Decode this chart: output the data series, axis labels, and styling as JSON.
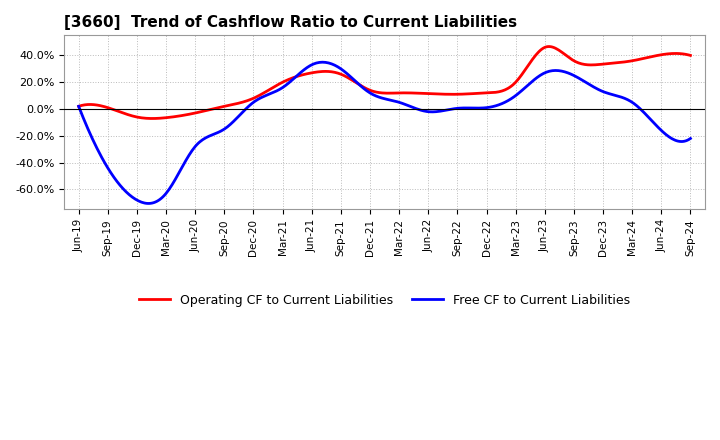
{
  "title": "[3660]  Trend of Cashflow Ratio to Current Liabilities",
  "labels": [
    "Jun-19",
    "Sep-19",
    "Dec-19",
    "Mar-20",
    "Jun-20",
    "Sep-20",
    "Dec-20",
    "Mar-21",
    "Jun-21",
    "Sep-21",
    "Dec-21",
    "Mar-22",
    "Jun-22",
    "Sep-22",
    "Dec-22",
    "Mar-23",
    "Jun-23",
    "Sep-23",
    "Dec-23",
    "Mar-24",
    "Jun-24",
    "Sep-24"
  ],
  "operating_cf": [
    2.0,
    1.0,
    -6.0,
    -6.5,
    -3.0,
    2.0,
    8.0,
    20.0,
    27.0,
    26.0,
    14.0,
    12.0,
    11.5,
    11.0,
    12.0,
    20.0,
    46.0,
    36.0,
    33.5,
    36.0,
    40.5,
    40.0
  ],
  "free_cf": [
    2.0,
    -44.0,
    -68.0,
    -63.0,
    -28.0,
    -15.0,
    5.0,
    16.0,
    33.0,
    30.0,
    12.0,
    5.0,
    -2.0,
    0.5,
    1.0,
    10.0,
    27.0,
    25.0,
    13.0,
    5.0,
    -16.0,
    -22.0
  ],
  "operating_color": "#ff0000",
  "free_color": "#0000ff",
  "background_color": "#ffffff",
  "grid_color": "#bbbbbb",
  "ylim": [
    -75,
    55
  ],
  "yticks": [
    -60.0,
    -40.0,
    -20.0,
    0.0,
    20.0,
    40.0
  ],
  "legend_labels": [
    "Operating CF to Current Liabilities",
    "Free CF to Current Liabilities"
  ]
}
